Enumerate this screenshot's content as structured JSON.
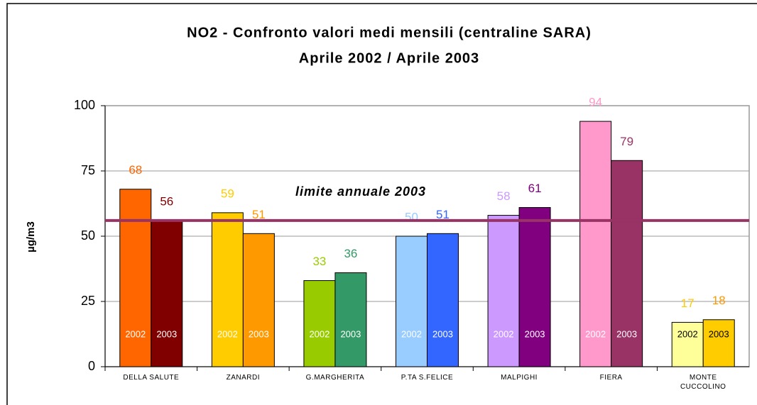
{
  "chart_data": {
    "type": "bar",
    "title": "NO2 - Confronto valori medi mensili (centraline SARA)",
    "subtitle": "Aprile 2002 / Aprile 2003",
    "y_label": "µg/m3",
    "categories": [
      "DELLA SALUTE",
      "ZANARDI",
      "G.MARGHERITA",
      "P.TA S.FELICE",
      "MALPIGHI",
      "FIERA",
      "MONTE CUCCOLINO"
    ],
    "series": [
      {
        "name": "2002",
        "values": [
          68,
          59,
          33,
          50,
          58,
          94,
          17
        ],
        "colors": [
          "#ff6600",
          "#ffcc00",
          "#99cc00",
          "#99ccff",
          "#cc99ff",
          "#ff99cc",
          "#ffff99"
        ],
        "label_colors": [
          "#ff6600",
          "#ffcc00",
          "#99cc00",
          "#99ccff",
          "#cc99ff",
          "#ff99cc",
          "#ffcc00"
        ],
        "name_colors": [
          "#ffffff",
          "#ffffff",
          "#ffffff",
          "#ffffff",
          "#ffffff",
          "#ffffff",
          "#000000"
        ]
      },
      {
        "name": "2003",
        "values": [
          56,
          51,
          36,
          51,
          61,
          79,
          18
        ],
        "colors": [
          "#800000",
          "#ff9900",
          "#339966",
          "#3366ff",
          "#800080",
          "#993366",
          "#ffcc00"
        ],
        "label_colors": [
          "#800000",
          "#ff9900",
          "#339966",
          "#3366ff",
          "#800080",
          "#993366",
          "#ff9900"
        ],
        "name_colors": [
          "#ffffff",
          "#ffffff",
          "#ffffff",
          "#ffffff",
          "#ffffff",
          "#ffffff",
          "#000000"
        ]
      }
    ],
    "limit": {
      "value": 56,
      "label": "limite annuale 2003",
      "color": "#993366"
    },
    "ylim": [
      0,
      100
    ],
    "yticks": [
      0,
      25,
      50,
      75,
      100
    ],
    "grid": true
  }
}
